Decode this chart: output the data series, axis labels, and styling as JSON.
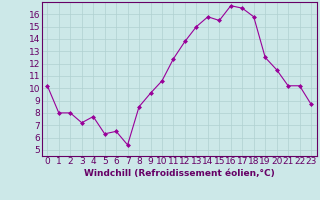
{
  "x": [
    0,
    1,
    2,
    3,
    4,
    5,
    6,
    7,
    8,
    9,
    10,
    11,
    12,
    13,
    14,
    15,
    16,
    17,
    18,
    19,
    20,
    21,
    22,
    23
  ],
  "y": [
    10.2,
    8.0,
    8.0,
    7.2,
    7.7,
    6.3,
    6.5,
    5.4,
    8.5,
    9.6,
    10.6,
    12.4,
    13.8,
    15.0,
    15.8,
    15.5,
    16.7,
    16.5,
    15.8,
    12.5,
    11.5,
    10.2,
    10.2,
    8.7
  ],
  "line_color": "#990099",
  "marker": "D",
  "marker_size": 2,
  "bg_color": "#cce8e8",
  "grid_color": "#b0d0d0",
  "xlabel": "Windchill (Refroidissement éolien,°C)",
  "xlabel_color": "#660066",
  "tick_color": "#660066",
  "xlim": [
    -0.5,
    23.5
  ],
  "ylim": [
    4.5,
    17.0
  ],
  "yticks": [
    5,
    6,
    7,
    8,
    9,
    10,
    11,
    12,
    13,
    14,
    15,
    16
  ],
  "xticks": [
    0,
    1,
    2,
    3,
    4,
    5,
    6,
    7,
    8,
    9,
    10,
    11,
    12,
    13,
    14,
    15,
    16,
    17,
    18,
    19,
    20,
    21,
    22,
    23
  ],
  "spine_color": "#660066",
  "label_fontsize": 6.5,
  "tick_fontsize": 6.5
}
